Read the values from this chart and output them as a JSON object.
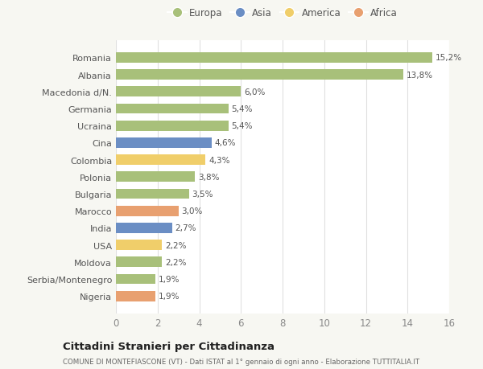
{
  "countries": [
    "Nigeria",
    "Serbia/Montenegro",
    "Moldova",
    "USA",
    "India",
    "Marocco",
    "Bulgaria",
    "Polonia",
    "Colombia",
    "Cina",
    "Ucraina",
    "Germania",
    "Macedonia d/N.",
    "Albania",
    "Romania"
  ],
  "values": [
    1.9,
    1.9,
    2.2,
    2.2,
    2.7,
    3.0,
    3.5,
    3.8,
    4.3,
    4.6,
    5.4,
    5.4,
    6.0,
    13.8,
    15.2
  ],
  "labels": [
    "1,9%",
    "1,9%",
    "2,2%",
    "2,2%",
    "2,7%",
    "3,0%",
    "3,5%",
    "3,8%",
    "4,3%",
    "4,6%",
    "5,4%",
    "5,4%",
    "6,0%",
    "13,8%",
    "15,2%"
  ],
  "continents": [
    "Africa",
    "Europa",
    "Europa",
    "America",
    "Asia",
    "Africa",
    "Europa",
    "Europa",
    "America",
    "Asia",
    "Europa",
    "Europa",
    "Europa",
    "Europa",
    "Europa"
  ],
  "colors": {
    "Europa": "#a8c07a",
    "Asia": "#6b8ec4",
    "America": "#f0ce6a",
    "Africa": "#e8a070"
  },
  "legend_order": [
    "Europa",
    "Asia",
    "America",
    "Africa"
  ],
  "title": "Cittadini Stranieri per Cittadinanza",
  "subtitle": "COMUNE DI MONTEFIASCONE (VT) - Dati ISTAT al 1° gennaio di ogni anno - Elaborazione TUTTITALIA.IT",
  "xlim": [
    0,
    16
  ],
  "xticks": [
    0,
    2,
    4,
    6,
    8,
    10,
    12,
    14,
    16
  ],
  "background_color": "#f7f7f2",
  "plot_bg_color": "#ffffff",
  "grid_color": "#e0e0e0",
  "bar_height": 0.6
}
